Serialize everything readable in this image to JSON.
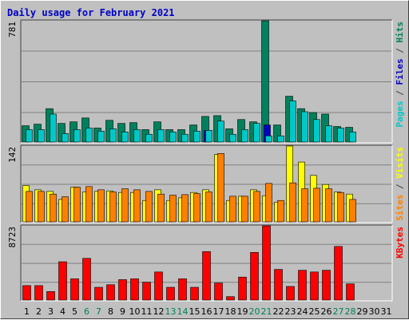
{
  "chart_data": {
    "type": "bar",
    "title": "Daily usage for February 2021",
    "categories": [
      "1",
      "2",
      "3",
      "4",
      "5",
      "6",
      "7",
      "8",
      "9",
      "10",
      "11",
      "12",
      "13",
      "14",
      "15",
      "16",
      "17",
      "18",
      "19",
      "20",
      "21",
      "22",
      "23",
      "24",
      "25",
      "26",
      "27",
      "28",
      "29",
      "30",
      "31"
    ],
    "weekend_days": [
      "6",
      "7",
      "13",
      "14",
      "20",
      "21",
      "27",
      "28"
    ],
    "panels": [
      {
        "id": "top",
        "max_label": "781",
        "ylim": [
          0,
          781
        ],
        "right_labels": [
          {
            "text": "Pages",
            "color": "#00c8c8"
          },
          {
            "text": " / ",
            "color": "#404040"
          },
          {
            "text": "Files",
            "color": "#0000c8"
          },
          {
            "text": " / ",
            "color": "#404040"
          },
          {
            "text": "Hits",
            "color": "#00805c"
          }
        ],
        "series": [
          {
            "name": "Hits",
            "color": "#00805c",
            "values": [
              105,
              115,
              215,
              120,
              130,
              155,
              90,
              140,
              120,
              125,
              80,
              130,
              80,
              80,
              110,
              165,
              170,
              85,
              145,
              130,
              781,
              110,
              295,
              215,
              190,
              180,
              100,
              95,
              null,
              null,
              null
            ]
          },
          {
            "name": "Files",
            "color": "#0000c8",
            "values": [
              null,
              null,
              null,
              null,
              null,
              null,
              null,
              null,
              null,
              null,
              null,
              null,
              null,
              null,
              null,
              75,
              null,
              null,
              null,
              null,
              110,
              null,
              null,
              null,
              null,
              null,
              null,
              null,
              null,
              null,
              null
            ]
          },
          {
            "name": "Pages",
            "color": "#00c8c8",
            "values": [
              80,
              80,
              180,
              55,
              80,
              90,
              70,
              85,
              65,
              80,
              50,
              80,
              65,
              50,
              70,
              75,
              135,
              50,
              80,
              120,
              40,
              40,
              265,
              195,
              145,
              105,
              90,
              65,
              null,
              null,
              null
            ]
          }
        ]
      },
      {
        "id": "middle",
        "max_label": "142",
        "ylim": [
          0,
          142
        ],
        "right_labels": [
          {
            "text": "Sites",
            "color": "#ff8000"
          },
          {
            "text": " / ",
            "color": "#404040"
          },
          {
            "text": "Visits",
            "color": "#ffff00"
          }
        ],
        "series": [
          {
            "name": "Visits",
            "color": "#ffff00",
            "values": [
              68,
              60,
              57,
              42,
              65,
              56,
              57,
              58,
              55,
              55,
              40,
              60,
              40,
              45,
              55,
              60,
              126,
              40,
              48,
              60,
              49,
              37,
              142,
              112,
              87,
              70,
              56,
              52,
              null,
              null,
              null
            ]
          },
          {
            "name": "Sites",
            "color": "#ff8000",
            "values": [
              57,
              57,
              52,
              47,
              65,
              66,
              60,
              56,
              62,
              60,
              57,
              52,
              50,
              51,
              53,
              56,
              128,
              48,
              48,
              57,
              72,
              40,
              73,
              62,
              63,
              62,
              55,
              42,
              null,
              null,
              null
            ]
          }
        ]
      },
      {
        "id": "bottom",
        "max_label": "8723",
        "ylim": [
          0,
          8723
        ],
        "right_labels": [
          {
            "text": "KBytes",
            "color": "#ff0000"
          }
        ],
        "series": [
          {
            "name": "KBytes",
            "color": "#ff0000",
            "values": [
              1700,
              1700,
              1000,
              4500,
              2500,
              4900,
              1500,
              1800,
              2400,
              2500,
              2100,
              3300,
              1500,
              2500,
              1500,
              5700,
              2000,
              400,
              2700,
              5600,
              8723,
              3600,
              1600,
              3500,
              3300,
              3500,
              6300,
              1900,
              null,
              null,
              null
            ]
          }
        ]
      }
    ],
    "colors": {
      "weekday_tick": "#000000",
      "weekend_tick": "#00805c",
      "panel_bg": "#c0c0c0",
      "grid": "#808080",
      "title": "#0000c8"
    }
  }
}
